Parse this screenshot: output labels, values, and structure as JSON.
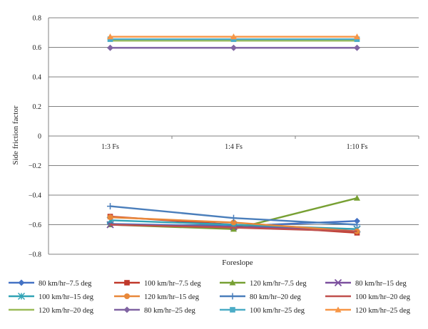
{
  "chart_data": {
    "type": "line",
    "xlabel": "Foreslope",
    "ylabel": "Side friction factor",
    "categories": [
      "1:3 Fs",
      "1:4 Fs",
      "1:10 Fs"
    ],
    "ylim": [
      -0.8,
      0.8
    ],
    "y_ticks": [
      "0.8",
      "0.6",
      "0.4",
      "0.2",
      "0",
      "−0.2",
      "−0.4",
      "−0.6",
      "−0.8"
    ],
    "grid": true,
    "legend_position": "bottom",
    "series": [
      {
        "name": "80 km/hr–7.5 deg",
        "color": "#4472C4",
        "marker": "diamond",
        "values": [
          -0.595,
          -0.61,
          -0.575
        ]
      },
      {
        "name": "100 km/hr–7.5 deg",
        "color": "#C0392B",
        "marker": "square",
        "values": [
          -0.545,
          -0.6,
          -0.655
        ]
      },
      {
        "name": "120 km/hr–7.5 deg",
        "color": "#77A033",
        "marker": "triangle",
        "values": [
          -0.6,
          -0.63,
          -0.42
        ]
      },
      {
        "name": "80 km/hr–15 deg",
        "color": "#7B4F9E",
        "marker": "x",
        "values": [
          -0.6,
          -0.615,
          -0.63
        ]
      },
      {
        "name": "100 km/hr–15 deg",
        "color": "#31A3B5",
        "marker": "asterisk",
        "values": [
          -0.57,
          -0.6,
          -0.63
        ]
      },
      {
        "name": "120 km/hr–15 deg",
        "color": "#E8883A",
        "marker": "circle",
        "values": [
          -0.55,
          -0.585,
          -0.645
        ]
      },
      {
        "name": "80 km/hr–20 deg",
        "color": "#4A7EBB",
        "marker": "plus",
        "values": [
          -0.475,
          -0.555,
          -0.6
        ]
      },
      {
        "name": "100 km/hr–20 deg",
        "color": "#C0504D",
        "marker": "none",
        "values": [
          -0.6,
          -0.62,
          -0.645
        ]
      },
      {
        "name": "120 km/hr–20 deg",
        "color": "#9BBB59",
        "marker": "none",
        "values": [
          0.645,
          0.645,
          0.645
        ]
      },
      {
        "name": "80 km/hr–25 deg",
        "color": "#8064A2",
        "marker": "diamond",
        "values": [
          0.597,
          0.597,
          0.597
        ]
      },
      {
        "name": "100 km/hr–25 deg",
        "color": "#4BACC6",
        "marker": "square",
        "values": [
          0.655,
          0.655,
          0.655
        ]
      },
      {
        "name": "120 km/hr–25 deg",
        "color": "#F79646",
        "marker": "triangle",
        "values": [
          0.672,
          0.672,
          0.672
        ]
      }
    ]
  }
}
